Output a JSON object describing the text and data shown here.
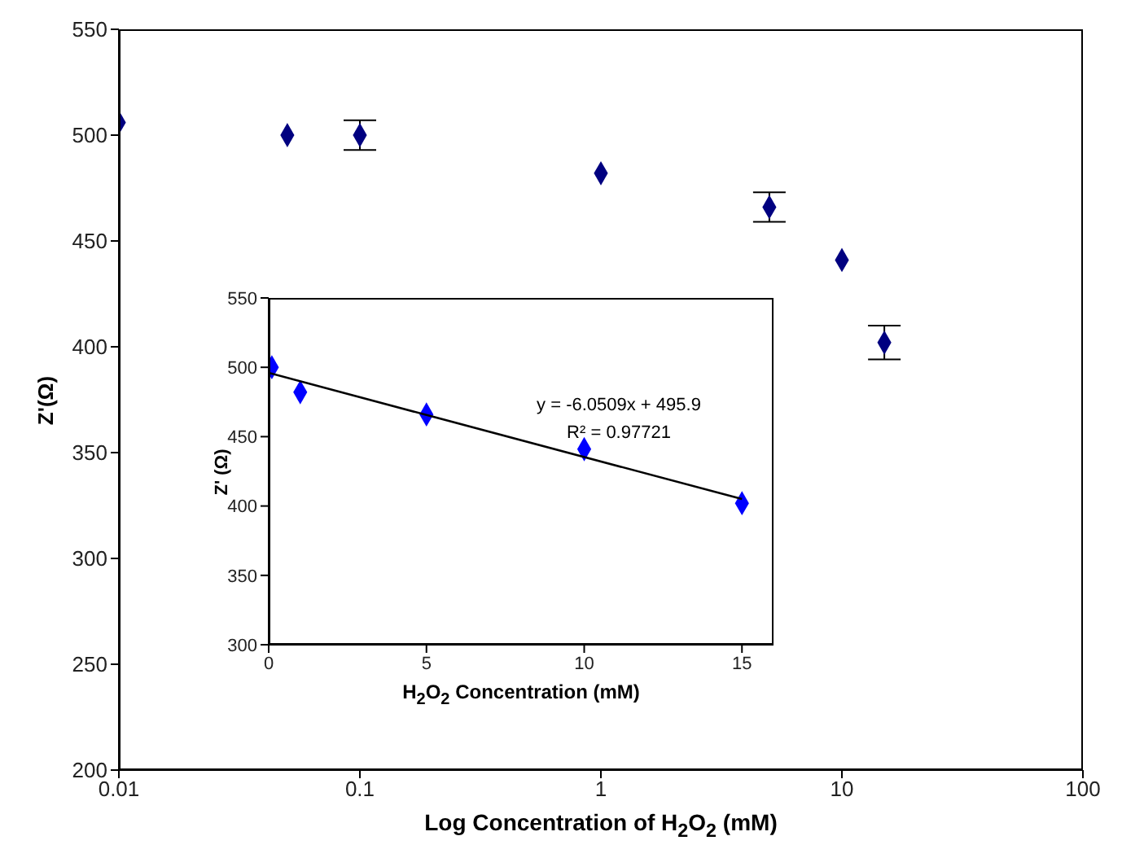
{
  "chart_data": [
    {
      "type": "scatter",
      "xlabel": "Log Concentration of H$_{2}$O$_{2}$ (mM)",
      "ylabel": "Z'(Ω)",
      "log": "x",
      "xlim": [
        0.01,
        100
      ],
      "xticks": [
        0.01,
        0.1,
        1,
        10,
        100
      ],
      "ylim": [
        200,
        550
      ],
      "yticks": [
        200,
        250,
        300,
        350,
        400,
        450,
        500,
        550
      ],
      "grid": false,
      "marker": "diamond",
      "series": [
        {
          "color": "#000080",
          "x": [
            0.01,
            0.05,
            0.1,
            1,
            5,
            10,
            15
          ],
          "values": [
            506,
            500,
            500,
            482,
            466,
            441,
            402
          ],
          "errors": [
            null,
            null,
            7,
            null,
            7,
            null,
            8
          ]
        }
      ]
    },
    {
      "type": "scatter",
      "xlabel": "H$_{2}$O$_{2}$ Concentration (mM)",
      "ylabel": "Z' (Ω)",
      "xlim": [
        0,
        16
      ],
      "xticks": [
        0,
        5,
        10,
        15
      ],
      "ylim": [
        300,
        550
      ],
      "yticks": [
        300,
        350,
        400,
        450,
        500,
        550
      ],
      "grid": false,
      "marker": "diamond",
      "annotations": [
        "y = -6.0509x + 495.9",
        "R² = 0.97721"
      ],
      "series": [
        {
          "color": "#0000ff",
          "x": [
            0.1,
            1,
            5,
            10,
            15
          ],
          "values": [
            500,
            482,
            466,
            441,
            402
          ]
        },
        {
          "type": "line",
          "color": "#000000",
          "x": [
            0,
            15
          ],
          "values": [
            496,
            405
          ],
          "marker": "none"
        }
      ]
    }
  ]
}
